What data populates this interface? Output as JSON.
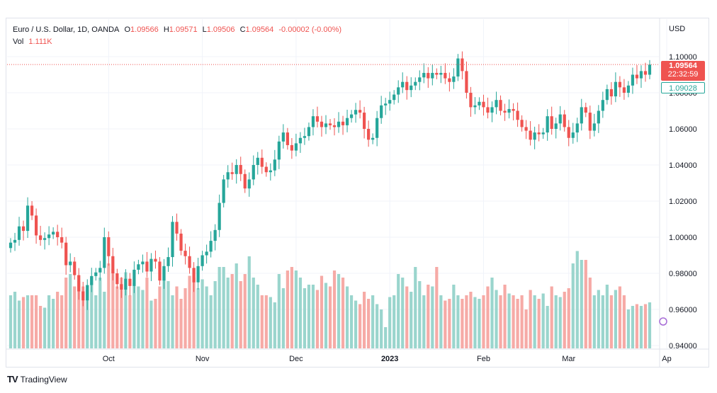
{
  "legend": {
    "symbol": "Euro / U.S. Dollar, 1D, OANDA",
    "o_label": "O",
    "o_value": "1.09566",
    "h_label": "H",
    "h_value": "1.09571",
    "l_label": "L",
    "l_value": "1.09506",
    "c_label": "C",
    "c_value": "1.09564",
    "change": "-0.00002 (-0.00%)",
    "vol_label": "Vol",
    "vol_value": "1.111K"
  },
  "price_scale": {
    "currency": "USD",
    "last_price": "1.09564",
    "countdown": "22:32:59",
    "marker_price": "1.09028"
  },
  "brand": {
    "name": "TradingView",
    "logo_text": "TV"
  },
  "colors": {
    "up": "#26a69a",
    "down": "#ef5350",
    "up_vol": "#9ad5cd",
    "down_vol": "#f6aaa6",
    "grid": "#f0f3fa"
  },
  "chart_data": {
    "type": "candlestick",
    "title": "Euro / U.S. Dollar, 1D, OANDA",
    "ylim": [
      0.94,
      1.11
    ],
    "y_ticks": [
      "1.10000",
      "1.08000",
      "1.06000",
      "1.04000",
      "1.02000",
      "1.00000",
      "0.98000",
      "0.96000",
      "0.94000"
    ],
    "x_ticks": [
      {
        "label": "Oct",
        "index": 23
      },
      {
        "label": "Nov",
        "index": 45
      },
      {
        "label": "Dec",
        "index": 67
      },
      {
        "label": "2023",
        "index": 89
      },
      {
        "label": "Feb",
        "index": 111
      },
      {
        "label": "Mar",
        "index": 131
      },
      {
        "label": "Ap",
        "index": 154
      }
    ],
    "grid": true,
    "close": [
      0.997,
      0.9985,
      1.006,
      1.0035,
      1.0175,
      1.012,
      1.001,
      0.9985,
      0.9995,
      1.0015,
      1.003,
      1.0,
      0.997,
      0.9845,
      0.9865,
      0.979,
      0.97,
      0.965,
      0.9735,
      0.9785,
      0.9805,
      0.983,
      1.0,
      0.9895,
      0.98,
      0.974,
      0.971,
      0.977,
      0.973,
      0.982,
      0.985,
      0.9865,
      0.981,
      0.988,
      0.9865,
      0.976,
      0.984,
      0.989,
      1.0085,
      1.002,
      0.9925,
      0.9895,
      0.983,
      0.975,
      0.984,
      0.99,
      0.992,
      0.998,
      1.004,
      1.019,
      1.032,
      1.036,
      1.035,
      1.04,
      1.035,
      1.027,
      1.032,
      1.04,
      1.044,
      1.039,
      1.036,
      1.037,
      1.043,
      1.053,
      1.058,
      1.051,
      1.048,
      1.052,
      1.055,
      1.056,
      1.061,
      1.067,
      1.064,
      1.061,
      1.063,
      1.062,
      1.061,
      1.064,
      1.062,
      1.066,
      1.068,
      1.0705,
      1.069,
      1.06,
      1.054,
      1.055,
      1.066,
      1.073,
      1.074,
      1.076,
      1.079,
      1.083,
      1.086,
      1.0815,
      1.084,
      1.086,
      1.0885,
      1.091,
      1.088,
      1.091,
      1.09,
      1.091,
      1.088,
      1.086,
      1.089,
      1.099,
      1.092,
      1.08,
      1.072,
      1.073,
      1.075,
      1.072,
      1.069,
      1.072,
      1.076,
      1.07,
      1.069,
      1.071,
      1.07,
      1.065,
      1.061,
      1.059,
      1.054,
      1.058,
      1.057,
      1.058,
      1.067,
      1.06,
      1.063,
      1.068,
      1.061,
      1.055,
      1.058,
      1.063,
      1.072,
      1.069,
      1.059,
      1.063,
      1.07,
      1.076,
      1.082,
      1.078,
      1.086,
      1.083,
      1.08,
      1.084,
      1.09,
      1.088,
      1.092,
      1.09,
      1.0956
    ],
    "volume_relative": [
      0.3,
      0.32,
      0.27,
      0.29,
      0.3,
      0.3,
      0.3,
      0.24,
      0.23,
      0.3,
      0.28,
      0.32,
      0.3,
      0.4,
      0.42,
      0.35,
      0.38,
      0.35,
      0.33,
      0.4,
      0.3,
      0.4,
      0.32,
      0.48,
      0.45,
      0.35,
      0.4,
      0.43,
      0.3,
      0.37,
      0.35,
      0.33,
      0.4,
      0.27,
      0.28,
      0.35,
      0.45,
      0.38,
      0.3,
      0.35,
      0.28,
      0.34,
      0.41,
      0.4,
      0.34,
      0.39,
      0.35,
      0.3,
      0.38,
      0.46,
      0.46,
      0.4,
      0.42,
      0.48,
      0.38,
      0.42,
      0.52,
      0.4,
      0.36,
      0.3,
      0.3,
      0.29,
      0.26,
      0.42,
      0.34,
      0.44,
      0.46,
      0.44,
      0.4,
      0.34,
      0.36,
      0.36,
      0.33,
      0.41,
      0.37,
      0.35,
      0.44,
      0.42,
      0.4,
      0.35,
      0.3,
      0.27,
      0.25,
      0.32,
      0.28,
      0.3,
      0.25,
      0.22,
      0.12,
      0.29,
      0.3,
      0.42,
      0.4,
      0.35,
      0.32,
      0.46,
      0.38,
      0.3,
      0.36,
      0.35,
      0.46,
      0.3,
      0.27,
      0.28,
      0.36,
      0.3,
      0.28,
      0.3,
      0.32,
      0.29,
      0.28,
      0.3,
      0.35,
      0.4,
      0.33,
      0.3,
      0.36,
      0.31,
      0.3,
      0.28,
      0.3,
      0.22,
      0.33,
      0.3,
      0.28,
      0.31,
      0.24,
      0.35,
      0.3,
      0.29,
      0.32,
      0.34,
      0.48,
      0.55,
      0.5,
      0.5,
      0.4,
      0.3,
      0.33,
      0.3,
      0.36,
      0.3,
      0.33,
      0.35,
      0.3,
      0.22,
      0.24,
      0.25,
      0.24,
      0.25,
      0.26
    ]
  }
}
